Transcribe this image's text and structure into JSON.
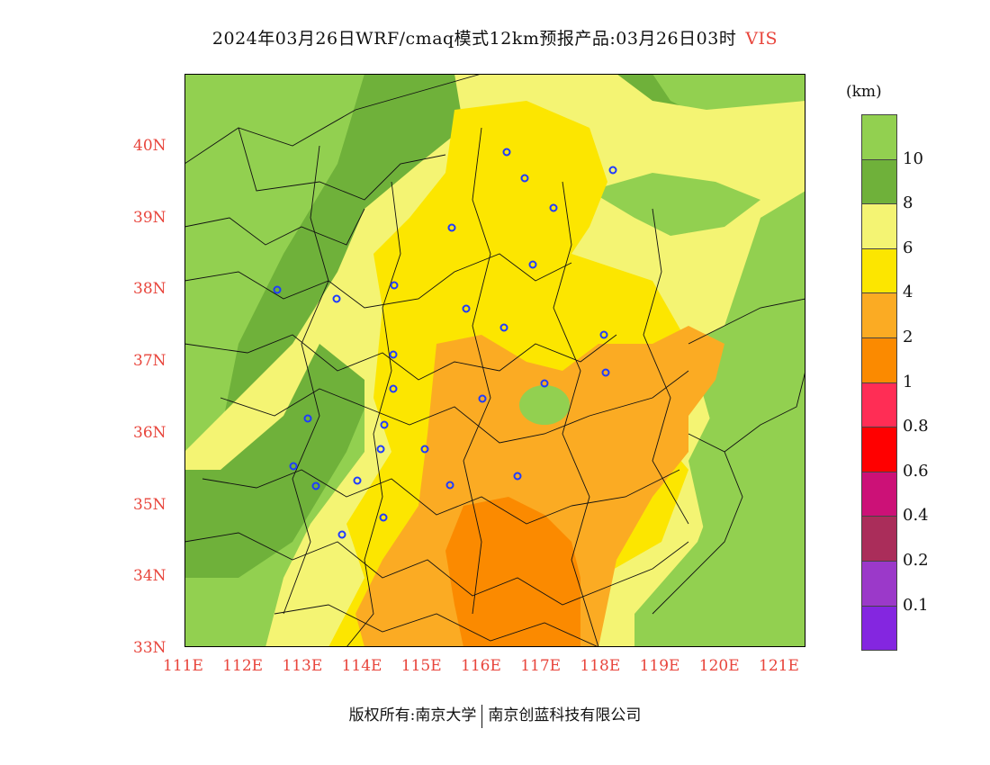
{
  "title": {
    "text": "2024年03月26日WRF/cmaq模式12km预报产品:03月26日03时",
    "variable": "VIS"
  },
  "colors": {
    "label_red": "#e8453c",
    "map_fill_gt10": "#92d050",
    "map_fill_8_10": "#6fb13a",
    "map_fill_6_8": "#f4f473",
    "map_fill_4_6": "#fce600",
    "map_fill_2_4": "#fbab23",
    "map_fill_1_2": "#fb8a00",
    "station_marker": "#1f3cff"
  },
  "map": {
    "lat_labels": [
      "40N",
      "39N",
      "38N",
      "37N",
      "36N",
      "35N",
      "34N",
      "33N"
    ],
    "lon_labels": [
      "111E",
      "112E",
      "113E",
      "114E",
      "115E",
      "116E",
      "117E",
      "118E",
      "119E",
      "120E",
      "121E"
    ],
    "lon_range": [
      111,
      121.4
    ],
    "lat_range": [
      33,
      41
    ],
    "station_count_note": ""
  },
  "legend": {
    "unit": "(km)",
    "colors": [
      "#92d050",
      "#6fb13a",
      "#f4f473",
      "#fce600",
      "#fbab23",
      "#fb8a00",
      "#ff2d55",
      "#ff0000",
      "#cc1177",
      "#aa2d5a",
      "#9b39c9",
      "#8426e0"
    ],
    "labels": [
      "10",
      "8",
      "6",
      "4",
      "2",
      "1",
      "0.8",
      "0.6",
      "0.4",
      "0.2",
      "0.1"
    ]
  },
  "footer": {
    "left": "版权所有:南京大学",
    "right": "南京创蓝科技有限公司"
  }
}
